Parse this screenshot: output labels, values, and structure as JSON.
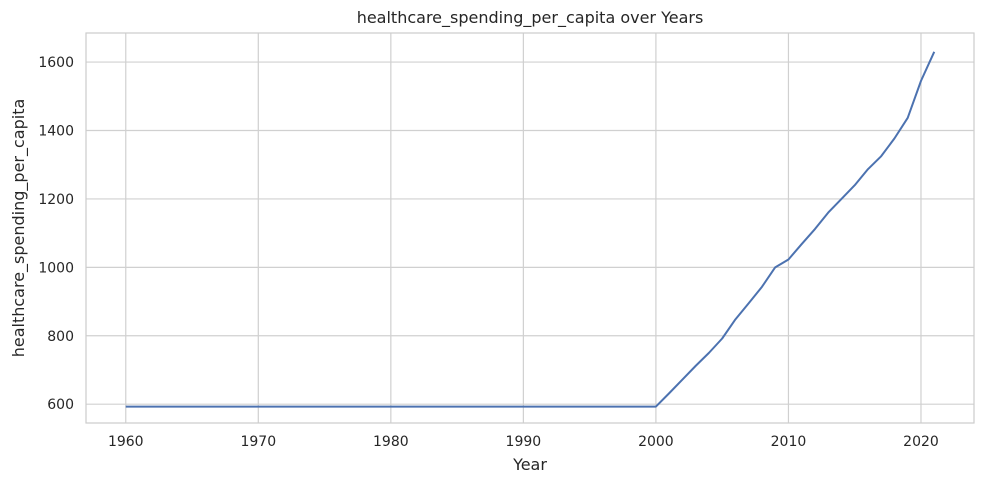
{
  "chart_data": {
    "type": "line",
    "title": "healthcare_spending_per_capita over Years",
    "xlabel": "Year",
    "ylabel": "healthcare_spending_per_capita",
    "xlim": [
      1957,
      2024
    ],
    "ylim": [
      545,
      1685
    ],
    "xticks": [
      1960,
      1970,
      1980,
      1990,
      2000,
      2010,
      2020
    ],
    "yticks": [
      600,
      800,
      1000,
      1200,
      1400,
      1600
    ],
    "grid": true,
    "series_color": "#4c72b0",
    "series": [
      {
        "x": [
          1960,
          1961,
          1962,
          1963,
          1964,
          1965,
          1966,
          1967,
          1968,
          1969,
          1970,
          1971,
          1972,
          1973,
          1974,
          1975,
          1976,
          1977,
          1978,
          1979,
          1980,
          1981,
          1982,
          1983,
          1984,
          1985,
          1986,
          1987,
          1988,
          1989,
          1990,
          1991,
          1992,
          1993,
          1994,
          1995,
          1996,
          1997,
          1998,
          1999,
          2000,
          2001,
          2002,
          2003,
          2004,
          2005,
          2006,
          2007,
          2008,
          2009,
          2010,
          2011,
          2012,
          2013,
          2014,
          2015,
          2016,
          2017,
          2018,
          2019,
          2020,
          2021
        ],
        "values": [
          593,
          593,
          593,
          593,
          593,
          593,
          593,
          593,
          593,
          593,
          593,
          593,
          593,
          593,
          593,
          593,
          593,
          593,
          593,
          593,
          593,
          593,
          593,
          593,
          593,
          593,
          593,
          593,
          593,
          593,
          593,
          593,
          593,
          593,
          593,
          593,
          593,
          593,
          593,
          593,
          593,
          632,
          672,
          712,
          750,
          792,
          848,
          895,
          943,
          1000,
          1023,
          1068,
          1112,
          1160,
          1200,
          1240,
          1287,
          1325,
          1377,
          1437,
          1545,
          1630
        ]
      }
    ]
  }
}
